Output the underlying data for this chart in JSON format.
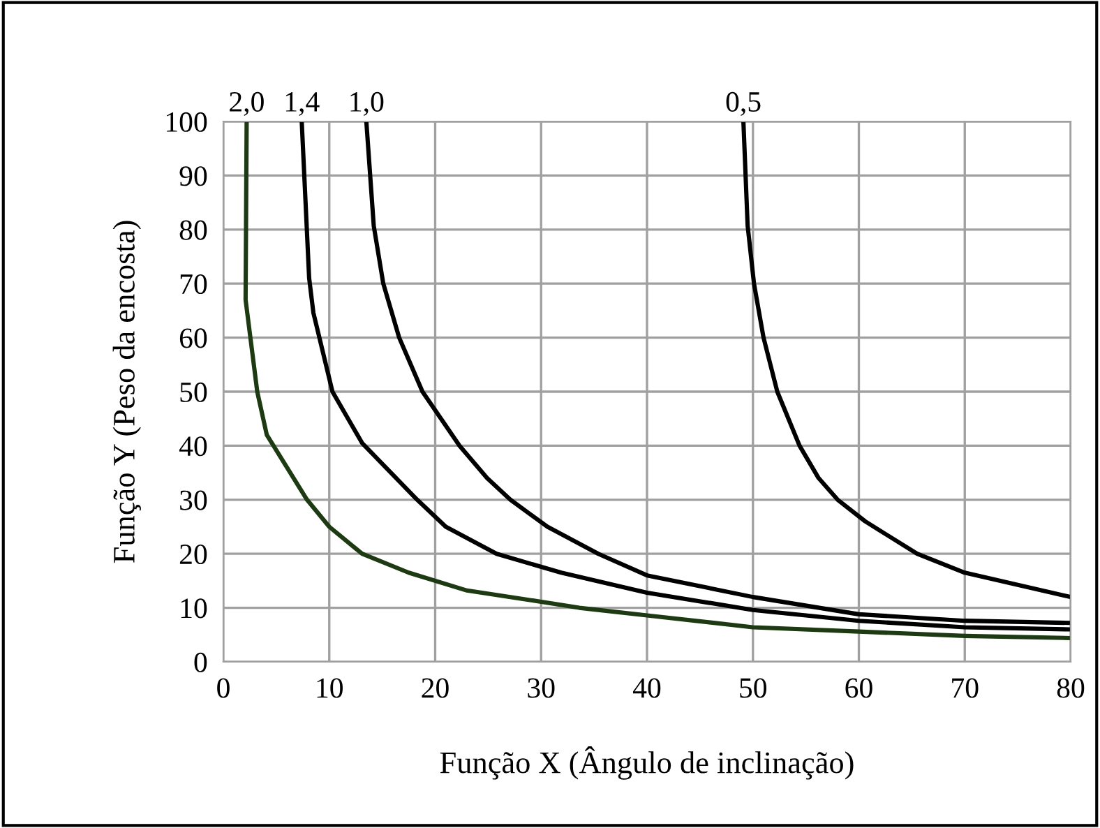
{
  "chart_data": {
    "type": "line",
    "xlabel": "Função X (Ângulo de inclinação)",
    "ylabel": "Função Y (Peso da encosta)",
    "xlim": [
      0,
      80
    ],
    "ylim": [
      0,
      100
    ],
    "xticks": [
      0,
      10,
      20,
      30,
      40,
      50,
      60,
      70,
      80
    ],
    "yticks": [
      0,
      10,
      20,
      30,
      40,
      50,
      60,
      70,
      80,
      90,
      100
    ],
    "grid": true,
    "marker": "none",
    "line_style": "solid",
    "series": [
      {
        "name": "2,0",
        "color": "#1e3a12",
        "x": [
          2.2,
          2.1,
          3.2,
          4.1,
          7.9,
          10,
          13.1,
          17.5,
          23,
          28.4,
          33.6,
          40,
          50,
          60,
          70,
          80
        ],
        "values": [
          100,
          67,
          50,
          42,
          30,
          25,
          20,
          16.5,
          13.2,
          11.6,
          10,
          8.6,
          6.4,
          5.6,
          4.8,
          4.4
        ]
      },
      {
        "name": "1,4",
        "color": "#000000",
        "x": [
          7.4,
          8.1,
          8.5,
          10.3,
          13.1,
          18.3,
          21,
          25.8,
          31.9,
          40,
          50,
          60,
          70,
          80
        ],
        "values": [
          100,
          71,
          64.6,
          50,
          40.5,
          30,
          25,
          20,
          16.5,
          12.8,
          9.6,
          7.6,
          6.4,
          6
        ]
      },
      {
        "name": "1,0",
        "color": "#000000",
        "x": [
          13.5,
          14.2,
          15.1,
          16.6,
          18.8,
          22.3,
          24.9,
          27.1,
          30.6,
          35.4,
          40,
          50,
          60,
          70,
          80
        ],
        "values": [
          100,
          80.7,
          70,
          60,
          50,
          40,
          34,
          30,
          25,
          20,
          16,
          12,
          8.8,
          7.6,
          7.2
        ]
      },
      {
        "name": "0,5",
        "color": "#000000",
        "x": [
          49.1,
          49.5,
          50.1,
          51,
          52.3,
          54.4,
          56.2,
          58,
          60.6,
          65.5,
          70,
          80
        ],
        "values": [
          100,
          80.7,
          70,
          60,
          50,
          40,
          34,
          30,
          26,
          20,
          16.5,
          12
        ]
      }
    ]
  }
}
